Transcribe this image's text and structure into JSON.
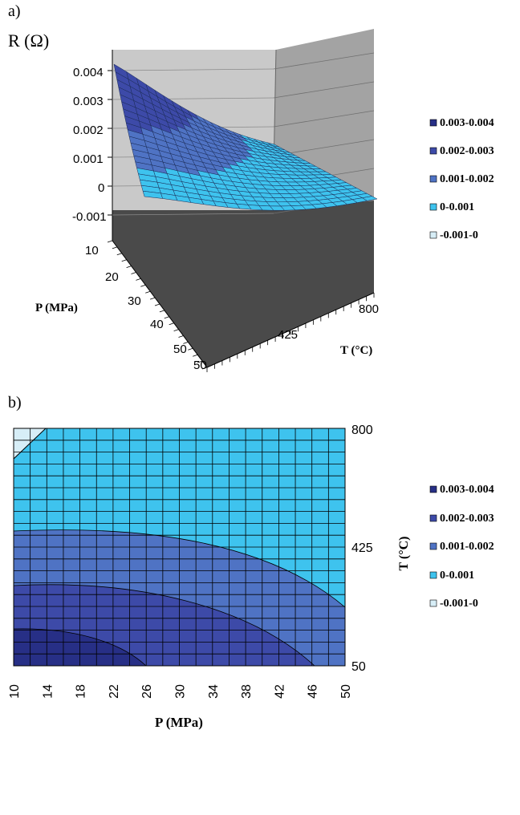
{
  "chart_data": [
    {
      "panel_label": "a)",
      "type": "surface3d",
      "zlabel": "R (Ω)",
      "xlabel": "P (MPa)",
      "ylabel": "T (°C)",
      "z_ticks": [
        "0.004",
        "0.003",
        "0.002",
        "0.001",
        "0",
        "-0.001"
      ],
      "zlim": [
        -0.001,
        0.004
      ],
      "p_ticks": [
        "10",
        "20",
        "30",
        "40",
        "50"
      ],
      "t_ticks": [
        "425",
        "800"
      ],
      "legend": {
        "placement": "right",
        "entries": [
          {
            "label": "0.003-0.004",
            "color": "#272f86"
          },
          {
            "label": "0.002-0.003",
            "color": "#3d4aa8"
          },
          {
            "label": "0.001-0.002",
            "color": "#4f73c4"
          },
          {
            "label": "0-0.001",
            "color": "#3ec3ee"
          },
          {
            "label": "-0.001-0",
            "color": "#d7eef7"
          }
        ]
      }
    },
    {
      "panel_label": "b)",
      "type": "contour",
      "xlabel": "P (MPa)",
      "ylabel": "T (°C)",
      "x_ticks": [
        "10",
        "14",
        "18",
        "22",
        "26",
        "30",
        "34",
        "38",
        "42",
        "46",
        "50"
      ],
      "y_ticks": [
        "800",
        "425",
        "50"
      ],
      "xlim": [
        10,
        50
      ],
      "ylim": [
        50,
        800
      ],
      "legend": {
        "placement": "right",
        "entries": [
          {
            "label": "0.003-0.004",
            "color": "#272f86"
          },
          {
            "label": "0.002-0.003",
            "color": "#3d4aa8"
          },
          {
            "label": "0.001-0.002",
            "color": "#4f73c4"
          },
          {
            "label": "0-0.001",
            "color": "#3ec3ee"
          },
          {
            "label": "-0.001-0",
            "color": "#d7eef7"
          }
        ]
      }
    }
  ]
}
